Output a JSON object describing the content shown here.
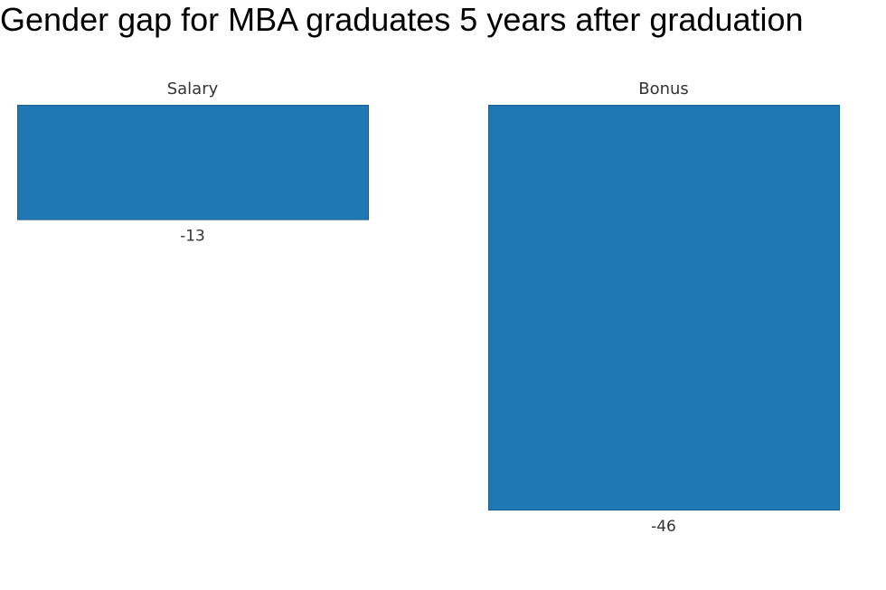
{
  "title": "Gender gap for MBA graduates 5 years after graduation",
  "chart_data": {
    "type": "bar",
    "title": "Gender gap for MBA graduates 5 years after graduation",
    "facets": [
      "Salary",
      "Bonus"
    ],
    "categories": [
      "Salary",
      "Bonus"
    ],
    "values": [
      -13,
      -46
    ],
    "ylim": [
      -46,
      0
    ],
    "grid": false,
    "legend": "none",
    "xlabel": "",
    "ylabel": "",
    "bar_color": "#1f77b4",
    "bar_border_color": "#1b5f91"
  }
}
